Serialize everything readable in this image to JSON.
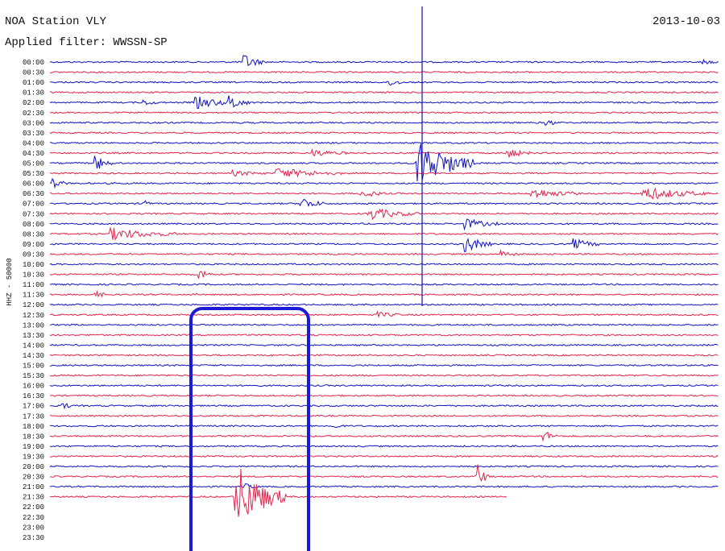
{
  "header": {
    "station": "NOA Station VLY",
    "filter": "Applied filter: WWSSN-SP",
    "date": "2013-10-03"
  },
  "axis_label": "HHZ - 50000",
  "rows": [
    "00:00",
    "00:30",
    "01:00",
    "01:30",
    "02:00",
    "02:30",
    "03:00",
    "03:30",
    "04:00",
    "04:30",
    "05:00",
    "05:30",
    "06:00",
    "06:30",
    "07:00",
    "07:30",
    "08:00",
    "08:30",
    "09:00",
    "09:30",
    "10:00",
    "10:30",
    "11:00",
    "11:30",
    "12:00",
    "12:30",
    "13:00",
    "13:30",
    "14:00",
    "14:30",
    "15:00",
    "15:30",
    "16:00",
    "16:30",
    "17:00",
    "17:30",
    "18:00",
    "18:30",
    "19:00",
    "19:30",
    "20:00",
    "20:30",
    "21:00",
    "21:30",
    "22:00",
    "22:30",
    "23:00",
    "23:30"
  ]
}
